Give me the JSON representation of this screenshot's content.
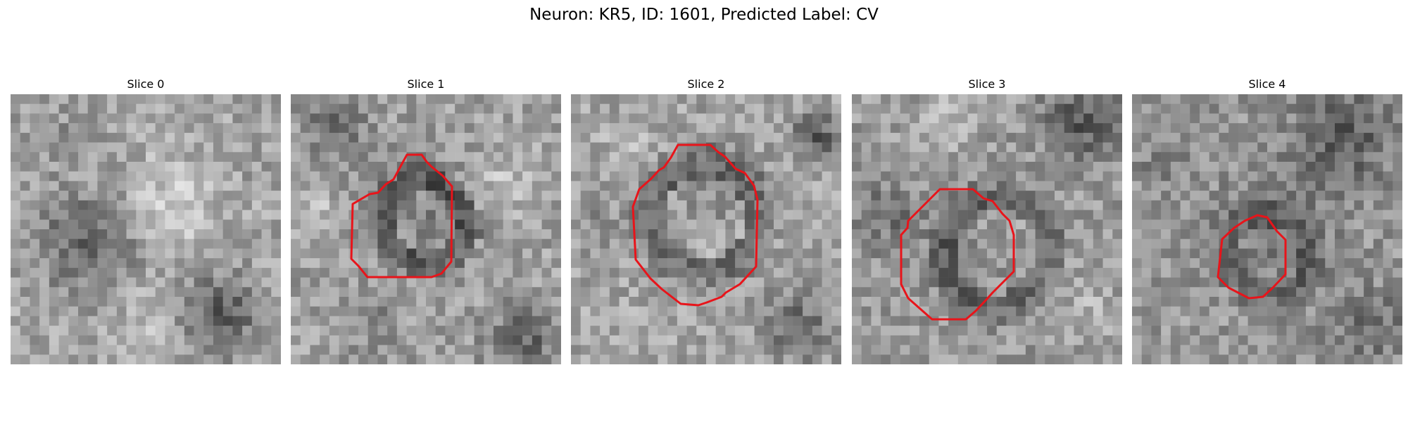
{
  "figure": {
    "title": "Neuron: KR5, ID: 1601, Predicted Label: CV"
  },
  "panels": [
    {
      "label": "Slice 0",
      "has_contour": false
    },
    {
      "label": "Slice 1",
      "has_contour": true
    },
    {
      "label": "Slice 2",
      "has_contour": true
    },
    {
      "label": "Slice 3",
      "has_contour": true
    },
    {
      "label": "Slice 4",
      "has_contour": true
    }
  ],
  "style": {
    "contour_color": "#e8141a",
    "colormap": "grayscale"
  }
}
